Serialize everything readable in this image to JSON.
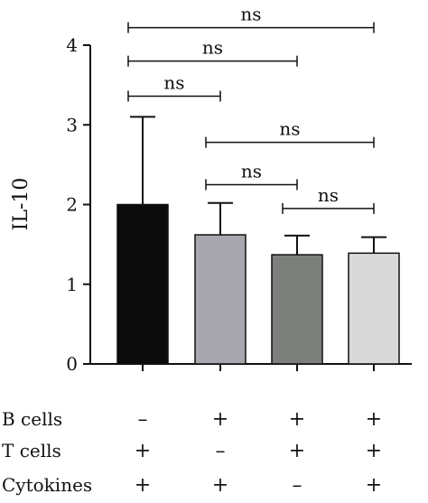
{
  "chart_data": {
    "type": "bar",
    "ylabel": "IL-10",
    "ylim": [
      0,
      4
    ],
    "yticks": [
      "0",
      "1",
      "2",
      "3",
      "4"
    ],
    "bars": [
      {
        "value": 2.0,
        "error": 1.1,
        "color": "#0b0b0b"
      },
      {
        "value": 1.62,
        "error": 0.4,
        "color": "#a7a7ad"
      },
      {
        "value": 1.37,
        "error": 0.24,
        "color": "#7d7f7d"
      },
      {
        "value": 1.39,
        "error": 0.2,
        "color": "#d9d9d9"
      }
    ],
    "significance": [
      {
        "from": 0,
        "to": 3,
        "label": "ns",
        "y": 4.22
      },
      {
        "from": 0,
        "to": 2,
        "label": "ns",
        "y": 3.8
      },
      {
        "from": 0,
        "to": 1,
        "label": "ns",
        "y": 3.36
      },
      {
        "from": 1,
        "to": 3,
        "label": "ns",
        "y": 2.78
      },
      {
        "from": 1,
        "to": 2,
        "label": "ns",
        "y": 2.25
      },
      {
        "from": 2,
        "to": 3,
        "label": "ns",
        "y": 1.95
      }
    ],
    "conditions": [
      {
        "name": "B cells",
        "values": [
          "–",
          "+",
          "+",
          "+"
        ]
      },
      {
        "name": "T cells",
        "values": [
          "+",
          "–",
          "+",
          "+"
        ]
      },
      {
        "name": "Cytokines",
        "values": [
          "+",
          "+",
          "–",
          "+"
        ]
      }
    ]
  }
}
